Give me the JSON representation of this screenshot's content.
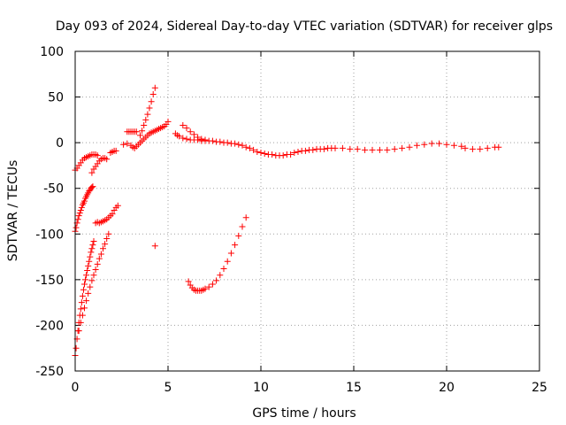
{
  "chart_data": {
    "type": "scatter",
    "title": "Day 093 of 2024, Sidereal Day-to-day VTEC variation (SDTVAR) for receiver glps",
    "xlabel": "GPS time / hours",
    "ylabel": "SDTVAR / TECUs",
    "xlim": [
      0,
      25
    ],
    "ylim": [
      -250,
      100
    ],
    "xticks": [
      0,
      5,
      10,
      15,
      20,
      25
    ],
    "yticks": [
      -250,
      -200,
      -150,
      -100,
      -50,
      0,
      50,
      100
    ],
    "xtick_labels": [
      "0",
      "5",
      "10",
      "15",
      "20",
      "25"
    ],
    "ytick_labels": [
      "-250",
      "-200",
      "-150",
      "-100",
      "-50",
      "0",
      "50",
      "100"
    ],
    "grid": true,
    "marker": "plus",
    "series": [
      {
        "color": "#ff0000",
        "points": [
          [
            0.0,
            -30
          ],
          [
            0.1,
            -28
          ],
          [
            0.2,
            -25
          ],
          [
            0.3,
            -22
          ],
          [
            0.4,
            -19
          ],
          [
            0.5,
            -17
          ],
          [
            0.6,
            -16
          ],
          [
            0.7,
            -15
          ],
          [
            0.8,
            -14
          ],
          [
            0.9,
            -13
          ],
          [
            1.0,
            -13
          ],
          [
            1.1,
            -13
          ],
          [
            1.2,
            -14
          ],
          [
            0.0,
            -97
          ],
          [
            0.05,
            -93
          ],
          [
            0.1,
            -88
          ],
          [
            0.15,
            -84
          ],
          [
            0.2,
            -80
          ],
          [
            0.25,
            -77
          ],
          [
            0.3,
            -74
          ],
          [
            0.35,
            -71
          ],
          [
            0.4,
            -68
          ],
          [
            0.45,
            -66
          ],
          [
            0.5,
            -64
          ],
          [
            0.55,
            -61
          ],
          [
            0.6,
            -59
          ],
          [
            0.65,
            -57
          ],
          [
            0.7,
            -55
          ],
          [
            0.75,
            -53
          ],
          [
            0.8,
            -52
          ],
          [
            0.85,
            -50
          ],
          [
            0.9,
            -49
          ],
          [
            0.95,
            -48
          ],
          [
            0.9,
            -33
          ],
          [
            1.0,
            -29
          ],
          [
            1.1,
            -26
          ],
          [
            1.2,
            -23
          ],
          [
            1.3,
            -20
          ],
          [
            1.4,
            -18
          ],
          [
            1.5,
            -17
          ],
          [
            1.6,
            -17
          ],
          [
            1.7,
            -18
          ],
          [
            0.0,
            -233
          ],
          [
            0.05,
            -225
          ],
          [
            0.1,
            -215
          ],
          [
            0.15,
            -206
          ],
          [
            0.2,
            -197
          ],
          [
            0.25,
            -189
          ],
          [
            0.3,
            -182
          ],
          [
            0.35,
            -175
          ],
          [
            0.4,
            -168
          ],
          [
            0.45,
            -161
          ],
          [
            0.5,
            -155
          ],
          [
            0.55,
            -150
          ],
          [
            0.6,
            -145
          ],
          [
            0.65,
            -140
          ],
          [
            0.7,
            -135
          ],
          [
            0.75,
            -130
          ],
          [
            0.8,
            -125
          ],
          [
            0.85,
            -120
          ],
          [
            0.9,
            -116
          ],
          [
            0.95,
            -112
          ],
          [
            1.0,
            -108
          ],
          [
            0.2,
            -206
          ],
          [
            0.3,
            -197
          ],
          [
            0.4,
            -189
          ],
          [
            0.5,
            -181
          ],
          [
            0.6,
            -173
          ],
          [
            0.7,
            -165
          ],
          [
            0.8,
            -158
          ],
          [
            0.9,
            -151
          ],
          [
            1.0,
            -145
          ],
          [
            1.1,
            -139
          ],
          [
            1.2,
            -133
          ],
          [
            1.3,
            -127
          ],
          [
            1.4,
            -122
          ],
          [
            1.5,
            -116
          ],
          [
            1.6,
            -111
          ],
          [
            1.7,
            -105
          ],
          [
            1.8,
            -100
          ],
          [
            1.1,
            -88
          ],
          [
            1.2,
            -87
          ],
          [
            1.3,
            -88
          ],
          [
            1.4,
            -87
          ],
          [
            1.5,
            -86
          ],
          [
            1.6,
            -85
          ],
          [
            1.7,
            -84
          ],
          [
            1.8,
            -82
          ],
          [
            1.9,
            -80
          ],
          [
            2.0,
            -78
          ],
          [
            2.1,
            -74
          ],
          [
            2.2,
            -71
          ],
          [
            2.3,
            -69
          ],
          [
            1.9,
            -11
          ],
          [
            2.0,
            -10
          ],
          [
            2.1,
            -9
          ],
          [
            2.2,
            -9
          ],
          [
            2.6,
            -2
          ],
          [
            2.8,
            -1
          ],
          [
            2.8,
            12
          ],
          [
            2.9,
            12
          ],
          [
            3.0,
            12
          ],
          [
            3.1,
            12
          ],
          [
            3.2,
            12
          ],
          [
            3.3,
            12
          ],
          [
            3.0,
            -3
          ],
          [
            3.1,
            -5
          ],
          [
            3.2,
            -6
          ],
          [
            3.3,
            -4
          ],
          [
            3.4,
            -2
          ],
          [
            3.5,
            0
          ],
          [
            3.6,
            2
          ],
          [
            3.7,
            4
          ],
          [
            3.8,
            6
          ],
          [
            3.9,
            8
          ],
          [
            4.0,
            10
          ],
          [
            4.1,
            11
          ],
          [
            4.2,
            12
          ],
          [
            4.3,
            13
          ],
          [
            4.4,
            14
          ],
          [
            4.5,
            15
          ],
          [
            4.6,
            16
          ],
          [
            4.7,
            17
          ],
          [
            4.8,
            18
          ],
          [
            4.9,
            20
          ],
          [
            5.0,
            23
          ],
          [
            3.5,
            8
          ],
          [
            3.6,
            13
          ],
          [
            3.7,
            19
          ],
          [
            3.8,
            25
          ],
          [
            3.9,
            31
          ],
          [
            4.0,
            38
          ],
          [
            4.1,
            45
          ],
          [
            4.2,
            53
          ],
          [
            4.3,
            60
          ],
          [
            4.3,
            -113
          ],
          [
            5.4,
            10
          ],
          [
            5.5,
            8
          ],
          [
            5.6,
            7
          ],
          [
            5.8,
            5
          ],
          [
            6.0,
            4
          ],
          [
            6.2,
            3
          ],
          [
            6.4,
            3
          ],
          [
            6.6,
            3
          ],
          [
            6.8,
            2
          ],
          [
            7.0,
            2
          ],
          [
            7.2,
            2
          ],
          [
            7.4,
            2
          ],
          [
            7.6,
            1
          ],
          [
            7.8,
            1
          ],
          [
            8.0,
            0
          ],
          [
            8.2,
            0
          ],
          [
            8.4,
            -1
          ],
          [
            8.6,
            -1
          ],
          [
            8.8,
            -2
          ],
          [
            9.0,
            -3
          ],
          [
            9.2,
            -5
          ],
          [
            9.4,
            -6
          ],
          [
            9.6,
            -8
          ],
          [
            9.8,
            -10
          ],
          [
            10.0,
            -11
          ],
          [
            10.2,
            -12
          ],
          [
            10.4,
            -13
          ],
          [
            10.6,
            -13
          ],
          [
            10.8,
            -14
          ],
          [
            11.0,
            -14
          ],
          [
            11.2,
            -14
          ],
          [
            11.4,
            -13
          ],
          [
            11.6,
            -13
          ],
          [
            11.8,
            -11
          ],
          [
            12.0,
            -10
          ],
          [
            12.2,
            -9
          ],
          [
            12.4,
            -9
          ],
          [
            12.6,
            -8
          ],
          [
            12.8,
            -8
          ],
          [
            13.0,
            -7
          ],
          [
            13.2,
            -7
          ],
          [
            13.4,
            -7
          ],
          [
            13.6,
            -6
          ],
          [
            13.8,
            -6
          ],
          [
            14.0,
            -6
          ],
          [
            14.4,
            -6
          ],
          [
            14.8,
            -7
          ],
          [
            15.2,
            -7
          ],
          [
            15.6,
            -8
          ],
          [
            16.0,
            -8
          ],
          [
            16.4,
            -8
          ],
          [
            16.8,
            -8
          ],
          [
            17.2,
            -7
          ],
          [
            17.6,
            -6
          ],
          [
            18.0,
            -5
          ],
          [
            18.4,
            -3
          ],
          [
            18.8,
            -2
          ],
          [
            19.2,
            -1
          ],
          [
            19.6,
            -1
          ],
          [
            20.0,
            -2
          ],
          [
            20.4,
            -3
          ],
          [
            20.8,
            -4
          ],
          [
            21.0,
            -6
          ],
          [
            21.4,
            -7
          ],
          [
            21.8,
            -7
          ],
          [
            22.2,
            -6
          ],
          [
            22.6,
            -5
          ],
          [
            22.8,
            -5
          ],
          [
            5.8,
            19
          ],
          [
            6.0,
            16
          ],
          [
            6.2,
            12
          ],
          [
            6.4,
            9
          ],
          [
            6.6,
            6
          ],
          [
            6.8,
            4
          ],
          [
            7.0,
            3
          ],
          [
            6.1,
            -152
          ],
          [
            6.2,
            -156
          ],
          [
            6.3,
            -159
          ],
          [
            6.4,
            -161
          ],
          [
            6.5,
            -162
          ],
          [
            6.6,
            -162
          ],
          [
            6.7,
            -162
          ],
          [
            6.8,
            -162
          ],
          [
            6.9,
            -161
          ],
          [
            7.0,
            -160
          ],
          [
            7.2,
            -158
          ],
          [
            7.4,
            -155
          ],
          [
            7.6,
            -151
          ],
          [
            7.8,
            -145
          ],
          [
            8.0,
            -138
          ],
          [
            8.2,
            -130
          ],
          [
            8.4,
            -121
          ],
          [
            8.6,
            -112
          ],
          [
            8.8,
            -102
          ],
          [
            9.0,
            -92
          ],
          [
            9.2,
            -82
          ]
        ]
      }
    ]
  }
}
